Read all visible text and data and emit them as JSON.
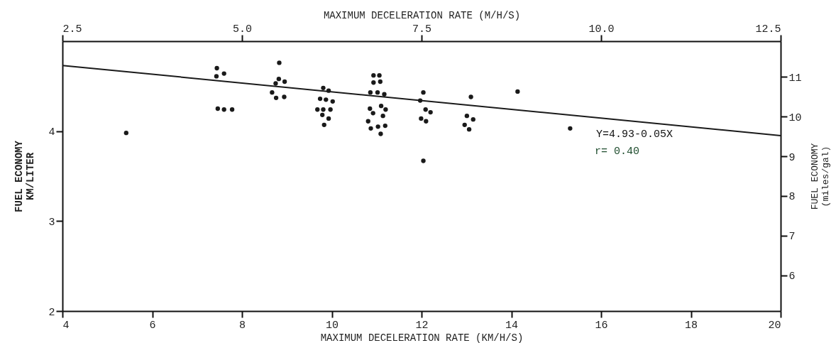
{
  "chart_data": {
    "type": "scatter",
    "xlabel": "MAXIMUM DECELERATION RATE (KM/H/S)",
    "x2label": "MAXIMUM DECELERATION RATE (M/H/S)",
    "ylabel": "FUEL ECONOMY\nKM/LITER",
    "y2label": "FUEL ECONOMY\n(miles/gal)",
    "xlim": [
      4,
      20
    ],
    "xticks": [
      4,
      6,
      8,
      10,
      12,
      14,
      16,
      18,
      20
    ],
    "ylim": [
      2,
      5
    ],
    "yticks": [
      2,
      3,
      4
    ],
    "x2lim": [
      2.5,
      12.5
    ],
    "x2ticks": [
      2.5,
      {
        "value": 5,
        "label": "5.0"
      },
      7.5,
      {
        "value": 10,
        "label": "10.0"
      },
      12.5
    ],
    "y2lim": [
      5.1,
      11.9
    ],
    "y2ticks": [
      6,
      7,
      8,
      9,
      10,
      11
    ],
    "grid": false,
    "marker": "circle",
    "series": [
      {
        "color": "#1a1a1a",
        "x": [
          5.42,
          7.44,
          7.43,
          7.6,
          7.46,
          7.6,
          7.78,
          8.83,
          8.75,
          8.82,
          8.95,
          8.67,
          8.76,
          8.94,
          9.81,
          9.93,
          9.74,
          9.87,
          10.02,
          9.68,
          9.81,
          9.97,
          9.79,
          9.93,
          9.83,
          10.93,
          11.06,
          10.93,
          11.08,
          10.86,
          11.02,
          11.17,
          11.1,
          10.85,
          11.2,
          10.92,
          11.14,
          10.81,
          11.03,
          11.19,
          10.87,
          11.09,
          12.04,
          11.97,
          12.09,
          12.2,
          11.99,
          12.1,
          12.04,
          13.1,
          13.01,
          13.15,
          12.96,
          13.06,
          14.14,
          15.31
        ],
        "values": [
          3.98,
          4.7,
          4.61,
          4.64,
          4.25,
          4.24,
          4.24,
          4.76,
          4.53,
          4.58,
          4.55,
          4.43,
          4.37,
          4.38,
          4.48,
          4.45,
          4.36,
          4.35,
          4.33,
          4.24,
          4.24,
          4.24,
          4.18,
          4.14,
          4.07,
          4.62,
          4.62,
          4.54,
          4.55,
          4.43,
          4.43,
          4.41,
          4.28,
          4.25,
          4.24,
          4.2,
          4.17,
          4.11,
          4.05,
          4.06,
          4.03,
          3.97,
          4.43,
          4.34,
          4.24,
          4.21,
          4.14,
          4.11,
          3.67,
          4.38,
          4.17,
          4.13,
          4.07,
          4.02,
          4.44,
          4.03
        ]
      },
      {
        "type": "line",
        "color": "#1a1a1a",
        "marker": "none",
        "line_style": "solid",
        "x": [
          4,
          20
        ],
        "values": [
          4.73,
          3.95
        ]
      }
    ],
    "annotations": [
      "Y=4.93-0.05X",
      "r= 0.40"
    ]
  }
}
